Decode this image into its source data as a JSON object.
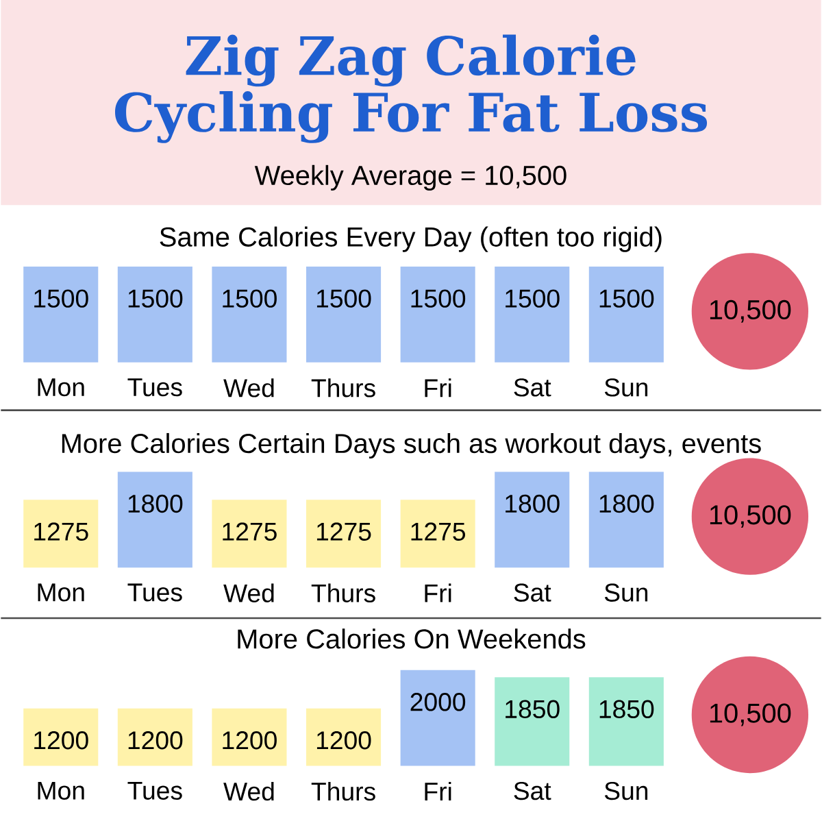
{
  "chart_data": [
    {
      "type": "bar",
      "title": "Zig Zag Calorie Cycling For Fat Loss",
      "subtitle": "Same Calories Every Day (often too rigid)",
      "annotations": [
        "Weekly Average = 10,500",
        "10,500"
      ],
      "categories": [
        "Mon",
        "Tues",
        "Wed",
        "Thurs",
        "Fri",
        "Sat",
        "Sun"
      ],
      "values": [
        1500,
        1500,
        1500,
        1500,
        1500,
        1500,
        1500
      ],
      "colors": [
        "#a4c2f4",
        "#a4c2f4",
        "#a4c2f4",
        "#a4c2f4",
        "#a4c2f4",
        "#a4c2f4",
        "#a4c2f4"
      ],
      "data_labels": true
    },
    {
      "type": "bar",
      "subtitle": "More Calories Certain Days such as workout days, events",
      "annotations": [
        "10,500"
      ],
      "categories": [
        "Mon",
        "Tues",
        "Wed",
        "Thurs",
        "Fri",
        "Sat",
        "Sun"
      ],
      "values": [
        1275,
        1800,
        1275,
        1275,
        1275,
        1800,
        1800
      ],
      "colors": [
        "#fff2aa",
        "#a4c2f4",
        "#fff2aa",
        "#fff2aa",
        "#fff2aa",
        "#a4c2f4",
        "#a4c2f4"
      ],
      "data_labels": true
    },
    {
      "type": "bar",
      "subtitle": "More Calories On Weekends",
      "annotations": [
        "10,500"
      ],
      "categories": [
        "Mon",
        "Tues",
        "Wed",
        "Thurs",
        "Fri",
        "Sat",
        "Sun"
      ],
      "values": [
        1200,
        1200,
        1200,
        1200,
        2000,
        1850,
        1850
      ],
      "colors": [
        "#fff2aa",
        "#fff2aa",
        "#fff2aa",
        "#fff2aa",
        "#a4c2f4",
        "#a5ecd4",
        "#a5ecd4"
      ],
      "data_labels": true
    }
  ]
}
